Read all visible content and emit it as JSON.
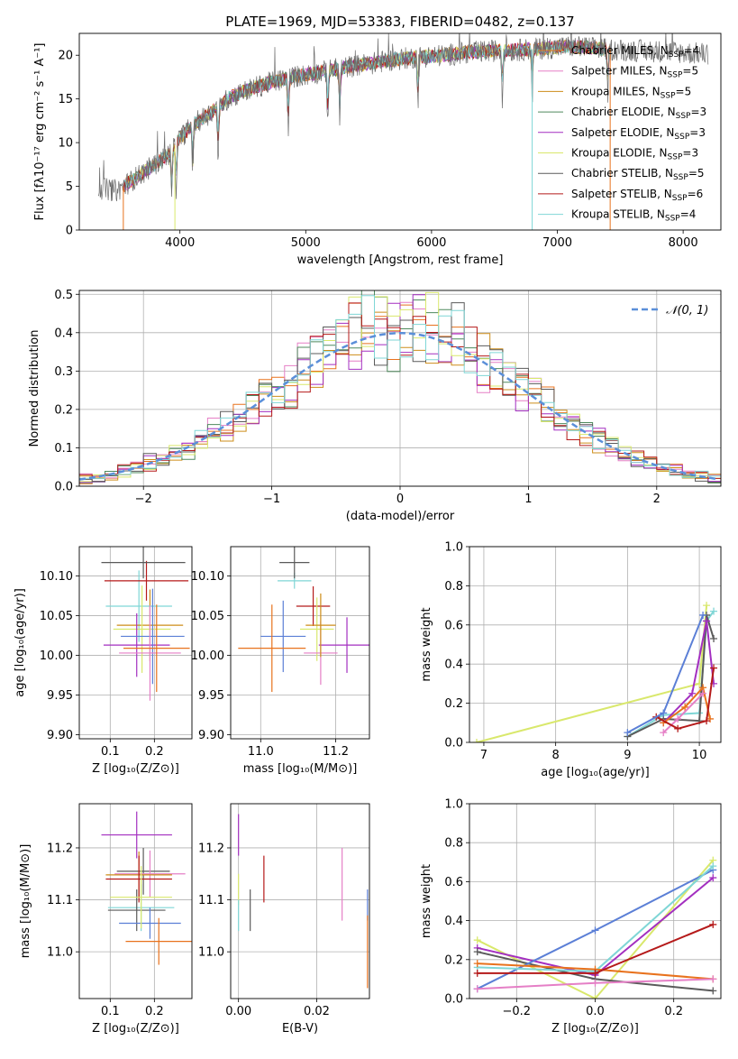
{
  "figure": {
    "title": "PLATE=1969, MJD=53383, FIBERID=0482, z=0.137"
  },
  "colors": {
    "series": [
      "#e8721d",
      "#e57fc6",
      "#cd8d1a",
      "#4f8a5e",
      "#a32fc0",
      "#d9e86c",
      "#5a5a5a",
      "#b51a1a",
      "#7fd6d6"
    ],
    "extra": [
      "#5b7fd6",
      "#c9e85f"
    ],
    "gaussian": "#5b8fd9"
  },
  "chart_data": [
    {
      "id": "spectrum",
      "type": "line",
      "title": "PLATE=1969, MJD=53383, FIBERID=0482, z=0.137",
      "xlabel": "wavelength [Angstrom, rest frame]",
      "ylabel": "Flux [fλ10⁻¹⁷ erg cm⁻² s⁻¹ A⁻¹]",
      "xlim": [
        3200,
        8300
      ],
      "ylim": [
        0,
        22.5
      ],
      "xticks": [
        4000,
        5000,
        6000,
        7000,
        8000
      ],
      "yticks": [
        0,
        5,
        10,
        15,
        20
      ],
      "grid": false,
      "legend_position": "top-right",
      "legend": [
        "Chabrier MILES, N_SSP=4",
        "Salpeter MILES, N_SSP=5",
        "Kroupa MILES, N_SSP=5",
        "Chabrier ELODIE, N_SSP=3",
        "Salpeter ELODIE, N_SSP=3",
        "Kroupa ELODIE, N_SSP=3",
        "Chabrier STELIB, N_SSP=5",
        "Salpeter STELIB, N_SSP=6",
        "Kroupa STELIB, N_SSP=4"
      ],
      "continuum": {
        "x": [
          3350,
          3500,
          3600,
          3700,
          3800,
          3900,
          4000,
          4100,
          4200,
          4300,
          4400,
          4500,
          4700,
          4900,
          5100,
          5300,
          5500,
          5700,
          5900,
          6100,
          6300,
          6500,
          6700,
          6900,
          7100,
          7300,
          7500,
          7700,
          7900,
          8100
        ],
        "y": [
          4.8,
          4.5,
          5.5,
          6.5,
          7.5,
          8.5,
          10.5,
          12.0,
          13.0,
          14.0,
          15.2,
          15.8,
          16.8,
          17.5,
          18.0,
          18.6,
          19.0,
          19.5,
          19.8,
          20.0,
          20.3,
          20.5,
          20.6,
          20.8,
          21.0,
          20.8,
          20.6,
          20.5,
          20.4,
          20.2
        ]
      },
      "model_range": [
        3550,
        7420
      ],
      "absorption_lines": [
        3934,
        3969,
        4102,
        4304,
        4861,
        5175,
        5270,
        5892,
        6563,
        6800,
        7400
      ]
    },
    {
      "id": "residuals",
      "type": "line",
      "xlabel": "(data-model)/error",
      "ylabel": "Normed distribution",
      "xlim": [
        -2.5,
        2.5
      ],
      "ylim": [
        0,
        0.51
      ],
      "xticks": [
        -2,
        -1,
        0,
        1,
        2
      ],
      "yticks": [
        0.0,
        0.1,
        0.2,
        0.3,
        0.4,
        0.5
      ],
      "grid": true,
      "legend_position": "top-right",
      "legend": [
        "𝒩(0, 1)"
      ],
      "bin_width": 0.1,
      "gaussian": {
        "mu": 0,
        "sigma": 1
      }
    },
    {
      "id": "age_vs_Z",
      "type": "scatter",
      "xlabel": "Z [log₁₀(Z/Z⊙)]",
      "ylabel": "age  [log₁₀(age/yr)]",
      "xlim": [
        0.03,
        0.285
      ],
      "ylim": [
        9.895,
        10.137
      ],
      "xticks": [
        0.1,
        0.2
      ],
      "yticks": [
        9.9,
        9.95,
        10.0,
        10.05,
        10.1
      ],
      "grid": true,
      "points": [
        {
          "x": 0.165,
          "xe": 0.075,
          "y": 10.062,
          "ye": 0.045,
          "c": 8
        },
        {
          "x": 0.19,
          "xe": 0.075,
          "y": 10.038,
          "ye": 0.045,
          "c": 2
        },
        {
          "x": 0.182,
          "xe": 0.095,
          "y": 10.094,
          "ye": 0.025,
          "c": 7
        },
        {
          "x": 0.172,
          "xe": 0.065,
          "y": 10.033,
          "ye": 0.055,
          "c": 5
        },
        {
          "x": 0.16,
          "xe": 0.075,
          "y": 10.013,
          "ye": 0.04,
          "c": 4
        },
        {
          "x": 0.196,
          "xe": 0.072,
          "y": 10.024,
          "ye": 0.06,
          "c": 9
        },
        {
          "x": 0.175,
          "xe": 0.095,
          "y": 10.117,
          "ye": 0.02,
          "c": 6
        },
        {
          "x": 0.19,
          "xe": 0.07,
          "y": 10.003,
          "ye": 0.06,
          "c": 1
        },
        {
          "x": 0.205,
          "xe": 0.075,
          "y": 10.009,
          "ye": 0.055,
          "c": 0
        }
      ]
    },
    {
      "id": "age_vs_mass",
      "type": "scatter",
      "xlabel": "mass [log₁₀(M/M⊙)]",
      "ylabel": "",
      "xlim": [
        10.92,
        11.29
      ],
      "ylim": [
        9.895,
        10.137
      ],
      "xticks": [
        11.0,
        11.2
      ],
      "yticks": [
        9.9,
        9.95,
        10.0,
        10.05,
        10.1
      ],
      "grid": true,
      "points": [
        {
          "x": 11.09,
          "xe": 0.045,
          "y": 10.094,
          "ye": 0.01,
          "c": 8
        },
        {
          "x": 11.06,
          "xe": 0.06,
          "y": 10.024,
          "ye": 0.045,
          "c": 9
        },
        {
          "x": 11.14,
          "xe": 0.045,
          "y": 10.062,
          "ye": 0.025,
          "c": 7
        },
        {
          "x": 11.03,
          "xe": 0.09,
          "y": 10.009,
          "ye": 0.055,
          "c": 0
        },
        {
          "x": 11.23,
          "xe": 0.075,
          "y": 10.013,
          "ye": 0.035,
          "c": 4
        },
        {
          "x": 11.15,
          "xe": 0.045,
          "y": 10.033,
          "ye": 0.04,
          "c": 5
        },
        {
          "x": 11.16,
          "xe": 0.045,
          "y": 10.003,
          "ye": 0.04,
          "c": 1
        },
        {
          "x": 11.09,
          "xe": 0.04,
          "y": 10.117,
          "ye": 0.02,
          "c": 6
        },
        {
          "x": 11.16,
          "xe": 0.04,
          "y": 10.038,
          "ye": 0.04,
          "c": 2
        }
      ]
    },
    {
      "id": "mass_weight_vs_age",
      "type": "line",
      "xlabel": "age  [log₁₀(age/yr)]",
      "ylabel": "mass weight",
      "xlim": [
        6.8,
        10.3
      ],
      "ylim": [
        0,
        1.0
      ],
      "xticks": [
        7,
        8,
        9,
        10
      ],
      "yticks": [
        0.0,
        0.2,
        0.4,
        0.6,
        0.8,
        1.0
      ],
      "grid": true,
      "series": [
        {
          "c": 5,
          "x": [
            6.9,
            10.0,
            10.1
          ],
          "y": [
            0.0,
            0.3,
            0.7
          ]
        },
        {
          "c": 8,
          "x": [
            9.0,
            9.5,
            10.0,
            10.1,
            10.2
          ],
          "y": [
            0.03,
            0.14,
            0.15,
            0.62,
            0.67
          ]
        },
        {
          "c": 6,
          "x": [
            9.0,
            9.5,
            10.0,
            10.1,
            10.2
          ],
          "y": [
            0.03,
            0.12,
            0.11,
            0.65,
            0.53
          ]
        },
        {
          "c": 4,
          "x": [
            9.5,
            9.9,
            10.1,
            10.2
          ],
          "y": [
            0.1,
            0.25,
            0.62,
            0.3
          ]
        },
        {
          "c": 0,
          "x": [
            9.5,
            9.8,
            10.05,
            10.15
          ],
          "y": [
            0.1,
            0.18,
            0.28,
            0.12
          ]
        },
        {
          "c": 1,
          "x": [
            9.5,
            9.7,
            10.05
          ],
          "y": [
            0.05,
            0.12,
            0.25
          ]
        },
        {
          "c": 7,
          "x": [
            9.4,
            9.7,
            10.1,
            10.2
          ],
          "y": [
            0.13,
            0.07,
            0.11,
            0.38
          ]
        },
        {
          "c": 9,
          "x": [
            9.0,
            9.5,
            10.05
          ],
          "y": [
            0.05,
            0.15,
            0.65
          ]
        }
      ]
    },
    {
      "id": "mass_vs_Z",
      "type": "scatter",
      "xlabel": "Z [log₁₀(Z/Z⊙)]",
      "ylabel": "mass [log₁₀(M/M⊙)]",
      "xlim": [
        0.03,
        0.285
      ],
      "ylim": [
        10.91,
        11.285
      ],
      "xticks": [
        0.1,
        0.2
      ],
      "yticks": [
        11.0,
        11.1,
        11.2
      ],
      "grid": true,
      "points": [
        {
          "x": 0.16,
          "xe": 0.08,
          "y": 11.225,
          "ye": 0.045,
          "c": 4
        },
        {
          "x": 0.175,
          "xe": 0.06,
          "y": 11.155,
          "ye": 0.045,
          "c": 6
        },
        {
          "x": 0.19,
          "xe": 0.08,
          "y": 11.15,
          "ye": 0.045,
          "c": 1
        },
        {
          "x": 0.165,
          "xe": 0.075,
          "y": 11.148,
          "ye": 0.045,
          "c": 2
        },
        {
          "x": 0.165,
          "xe": 0.075,
          "y": 11.14,
          "ye": 0.045,
          "c": 7
        },
        {
          "x": 0.17,
          "xe": 0.075,
          "y": 11.085,
          "ye": 0.045,
          "c": 8
        },
        {
          "x": 0.16,
          "xe": 0.065,
          "y": 11.08,
          "ye": 0.04,
          "c": 6
        },
        {
          "x": 0.19,
          "xe": 0.07,
          "y": 11.055,
          "ye": 0.03,
          "c": 9
        },
        {
          "x": 0.21,
          "xe": 0.075,
          "y": 11.02,
          "ye": 0.045,
          "c": 0
        },
        {
          "x": 0.17,
          "xe": 0.07,
          "y": 11.105,
          "ye": 0.06,
          "c": 5
        }
      ]
    },
    {
      "id": "mass_vs_ebv",
      "type": "scatter",
      "xlabel": "E(B-V)",
      "ylabel": "",
      "xlim": [
        -0.002,
        0.0335
      ],
      "ylim": [
        10.91,
        11.285
      ],
      "xticks": [
        0.0,
        0.02
      ],
      "yticks": [
        11.0,
        11.1,
        11.2
      ],
      "grid": true,
      "points": [
        {
          "x": 0.0,
          "y": 11.225,
          "ye": 0.04,
          "c": 4
        },
        {
          "x": 0.0,
          "y": 11.12,
          "ye": 0.03,
          "c": 5
        },
        {
          "x": 0.0,
          "y": 11.07,
          "ye": 0.03,
          "c": 8
        },
        {
          "x": 0.003,
          "y": 11.08,
          "ye": 0.04,
          "c": 6
        },
        {
          "x": 0.0065,
          "y": 11.14,
          "ye": 0.045,
          "c": 7
        },
        {
          "x": 0.0265,
          "y": 11.13,
          "ye": 0.07,
          "c": 1
        },
        {
          "x": 0.033,
          "y": 11.09,
          "ye": 0.03,
          "c": 9
        },
        {
          "x": 0.033,
          "y": 11.0,
          "ye": 0.07,
          "c": 0
        }
      ]
    },
    {
      "id": "mass_weight_vs_Z",
      "type": "line",
      "xlabel": "Z [log₁₀(Z/Z⊙)]",
      "ylabel": "mass weight",
      "xlim": [
        -0.32,
        0.32
      ],
      "ylim": [
        0,
        1.0
      ],
      "xticks": [
        -0.2,
        0.0,
        0.2
      ],
      "yticks": [
        0.0,
        0.2,
        0.4,
        0.6,
        0.8,
        1.0
      ],
      "grid": true,
      "series": [
        {
          "c": 5,
          "x": [
            -0.3,
            0.0,
            0.3
          ],
          "y": [
            0.3,
            0.0,
            0.71
          ]
        },
        {
          "c": 4,
          "x": [
            -0.3,
            0.0,
            0.3
          ],
          "y": [
            0.26,
            0.12,
            0.62
          ]
        },
        {
          "c": 6,
          "x": [
            -0.3,
            0.0,
            0.3
          ],
          "y": [
            0.24,
            0.1,
            0.04
          ]
        },
        {
          "c": 9,
          "x": [
            -0.3,
            0.0,
            0.3
          ],
          "y": [
            0.05,
            0.35,
            0.66
          ]
        },
        {
          "c": 8,
          "x": [
            -0.3,
            0.0,
            0.3
          ],
          "y": [
            0.16,
            0.14,
            0.68
          ]
        },
        {
          "c": 0,
          "x": [
            -0.3,
            0.0,
            0.3
          ],
          "y": [
            0.18,
            0.15,
            0.1
          ]
        },
        {
          "c": 7,
          "x": [
            -0.3,
            0.0,
            0.3
          ],
          "y": [
            0.13,
            0.13,
            0.38
          ]
        },
        {
          "c": 1,
          "x": [
            -0.3,
            0.0,
            0.3
          ],
          "y": [
            0.05,
            0.08,
            0.1
          ]
        }
      ]
    }
  ]
}
